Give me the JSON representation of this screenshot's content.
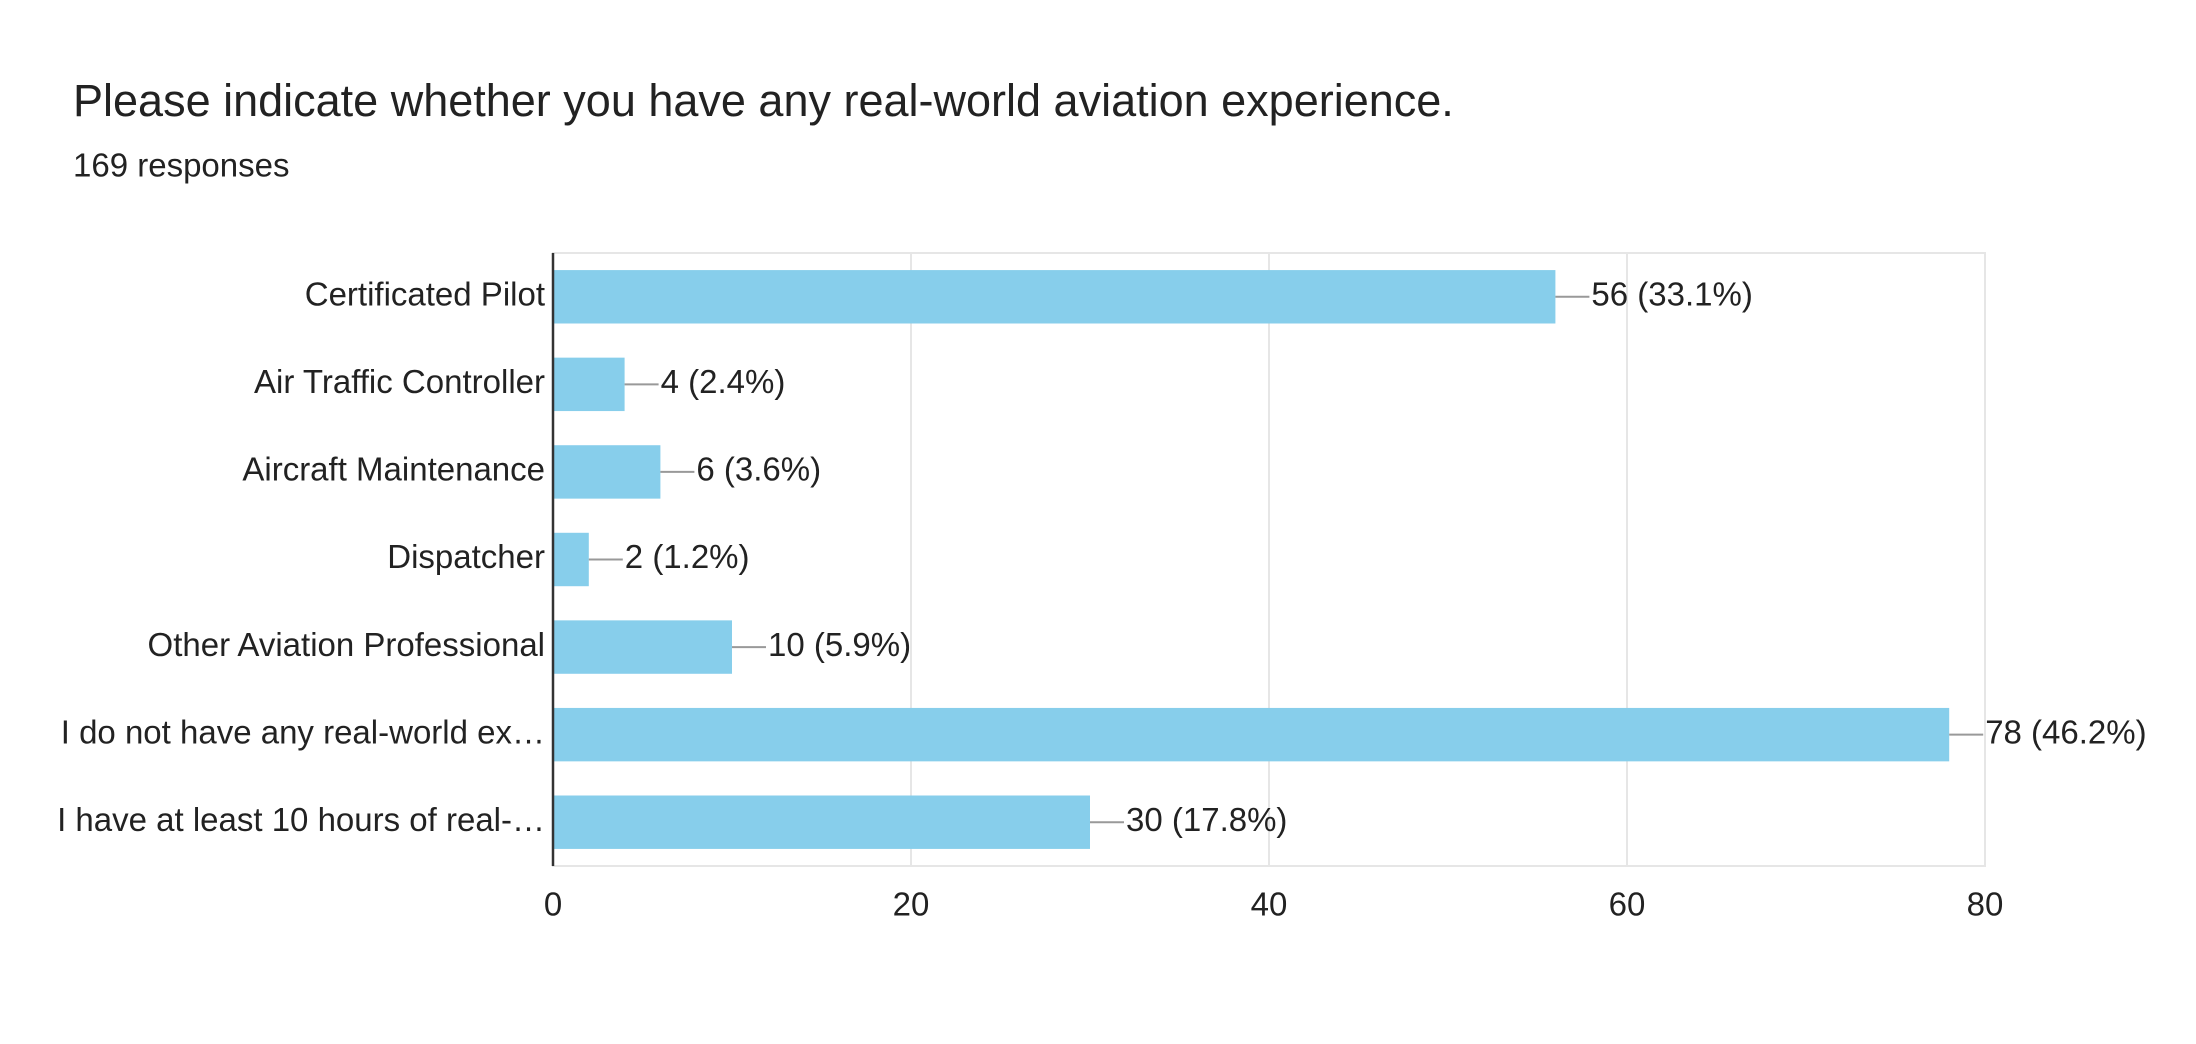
{
  "chart_data": {
    "type": "hbar",
    "title": "Please indicate whether you have any real-world aviation experience.",
    "subtitle": "169 responses",
    "categories": [
      "Certificated Pilot",
      "Air Traffic Controller",
      "Aircraft Maintenance",
      "Dispatcher",
      "Other Aviation Professional",
      "I do not have any real-world ex…",
      "I have at least 10 hours of real-…"
    ],
    "values": [
      56,
      4,
      6,
      2,
      10,
      78,
      30
    ],
    "value_labels": [
      "56 (33.1%)",
      "4 (2.4%)",
      "6 (3.6%)",
      "2 (1.2%)",
      "10 (5.9%)",
      "78 (46.2%)",
      "30 (17.8%)"
    ],
    "color": "#87ceeb",
    "xlim": [
      0,
      80
    ],
    "xticks": [
      0,
      20,
      40,
      60,
      80
    ],
    "grid": true
  }
}
